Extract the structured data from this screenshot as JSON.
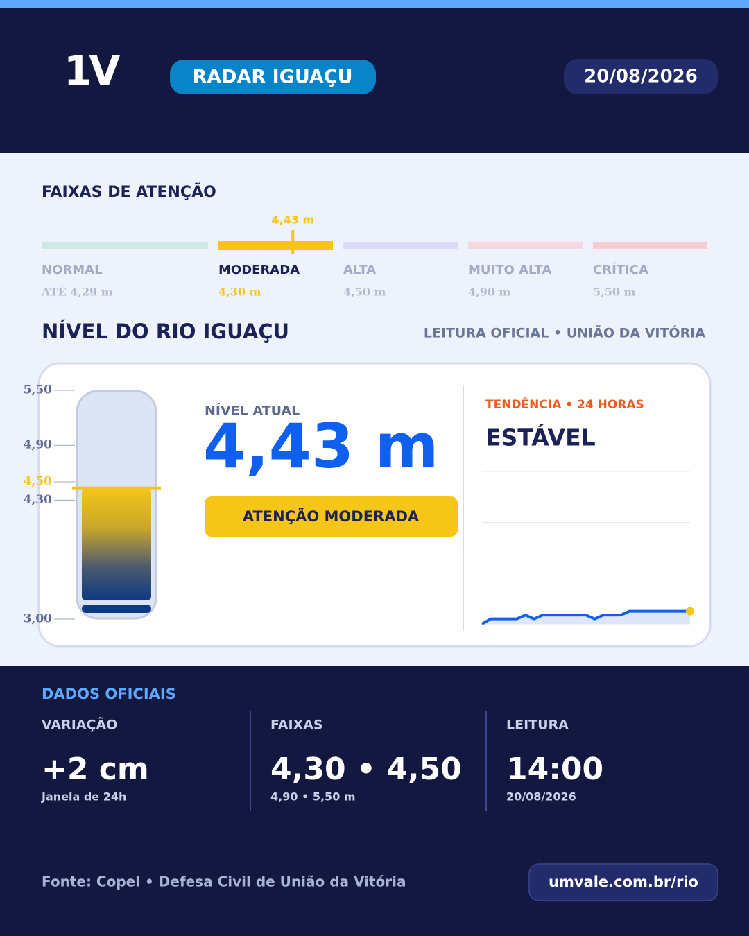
{
  "header": {
    "logo": "1V",
    "badge": "RADAR IGUAÇU",
    "date": "20/08/2026"
  },
  "attention_bands": {
    "title": "FAIXAS DE ATENÇÃO",
    "current": {
      "value": 4.43,
      "label": "4,43 m"
    },
    "bands": [
      {
        "name": "NORMAL",
        "range": {
          "value": 4.29,
          "label": "ATÉ 4,29 m"
        },
        "color": "#cfe9e1"
      },
      {
        "name": "MODERADA",
        "range": {
          "value": 4.3,
          "label": "4,30 m"
        },
        "color": "#f5c518",
        "active": true
      },
      {
        "name": "ALTA",
        "range": {
          "value": 4.5,
          "label": "4,50 m"
        },
        "color": "#dcdaf5"
      },
      {
        "name": "MUITO ALTA",
        "range": {
          "value": 4.9,
          "label": "4,90 m"
        },
        "color": "#f4d8df"
      },
      {
        "name": "CRÍTICA",
        "range": {
          "value": 5.5,
          "label": "5,50 m"
        },
        "color": "#f5cdd3"
      }
    ]
  },
  "level": {
    "title": "NÍVEL DO RIO IGUAÇU",
    "source": "LEITURA OFICIAL • UNIÃO DA VITÓRIA",
    "current_label": "NÍVEL ATUAL",
    "status": "ATENÇÃO MODERADA"
  },
  "chart_data": [
    {
      "type": "gauge",
      "value": 4.43,
      "ylim": [
        3.0,
        5.5
      ],
      "yticks": [
        {
          "value": 5.5,
          "label": "5,50"
        },
        {
          "value": 4.9,
          "label": "4,90"
        },
        {
          "value": 4.5,
          "label": "4,50",
          "color": "#f5c518"
        },
        {
          "value": 4.3,
          "label": "4,30"
        },
        {
          "value": 3.0,
          "label": "3,00"
        }
      ],
      "color": "#f5c518"
    },
    {
      "type": "line",
      "title": "TENDÊNCIA • 24 HORAS",
      "subtitle": "ESTÁVEL",
      "values": [
        4.41,
        4.418,
        4.418,
        4.418,
        4.418,
        4.424,
        4.418,
        4.424,
        4.424,
        4.424,
        4.424,
        4.424,
        4.424,
        4.418,
        4.424,
        4.424,
        4.424,
        4.43,
        4.43,
        4.43,
        4.43,
        4.43,
        4.43,
        4.43,
        4.43
      ],
      "ylim": [
        4.41,
        4.65
      ],
      "yticks": [
        4.41,
        4.49,
        4.57,
        4.65
      ],
      "grid": true,
      "color": "#1060f0",
      "marker_color": "#f5c518"
    }
  ],
  "official_data": {
    "title": "DADOS OFICIAIS",
    "items": [
      {
        "label": "VARIAÇÃO",
        "value": "+2 cm",
        "note": "Janela de 24h"
      },
      {
        "label": "FAIXAS",
        "value": "4,30 • 4,50",
        "note": "4,90 • 5,50 m"
      },
      {
        "label": "LEITURA",
        "value": "14:00",
        "note": "20/08/2026"
      }
    ]
  },
  "footer": {
    "source": "Fonte: Copel • Defesa Civil de União da Vitória",
    "url": "umvale.com.br/rio"
  }
}
